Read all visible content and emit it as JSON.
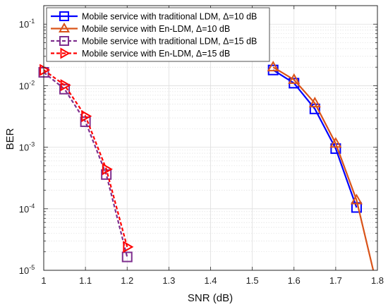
{
  "chart_data": {
    "type": "line",
    "title": "",
    "xlabel": "SNR (dB)",
    "ylabel": "BER",
    "xlim": [
      1,
      1.8
    ],
    "ylim": [
      1e-05,
      0.2
    ],
    "yscale": "log",
    "grid": true,
    "legend_position": "top",
    "x_ticks": [
      "1",
      "1.1",
      "1.2",
      "1.3",
      "1.4",
      "1.5",
      "1.6",
      "1.7",
      "1.8"
    ],
    "y_ticks": [
      {
        "value": 1e-05,
        "base": "10",
        "exp": "-5"
      },
      {
        "value": 0.0001,
        "base": "10",
        "exp": "-4"
      },
      {
        "value": 0.001,
        "base": "10",
        "exp": "-3"
      },
      {
        "value": 0.01,
        "base": "10",
        "exp": "-2"
      },
      {
        "value": 0.1,
        "base": "10",
        "exp": "-1"
      }
    ],
    "series": [
      {
        "name": "Mobile service with traditional LDM, Δ=10 dB",
        "color": "#0000ff",
        "marker": "square",
        "dashed": false,
        "points": [
          [
            1.55,
            0.018
          ],
          [
            1.6,
            0.011
          ],
          [
            1.65,
            0.0042
          ],
          [
            1.7,
            0.00095
          ],
          [
            1.75,
            0.000105
          ]
        ],
        "tail": []
      },
      {
        "name": "Mobile service with En-LDM, Δ=10 dB",
        "color": "#d95319",
        "marker": "triangle-up",
        "dashed": false,
        "points": [
          [
            1.55,
            0.02
          ],
          [
            1.6,
            0.0125
          ],
          [
            1.65,
            0.0052
          ],
          [
            1.7,
            0.00115
          ],
          [
            1.75,
            0.000138
          ]
        ],
        "tail": [
          [
            1.79,
            1e-05
          ]
        ]
      },
      {
        "name": "Mobile service with traditional LDM, Δ=15 dB",
        "color": "#7e2f8e",
        "marker": "square",
        "dashed": true,
        "points": [
          [
            1.0,
            0.0165
          ],
          [
            1.05,
            0.0088
          ],
          [
            1.1,
            0.0026
          ],
          [
            1.15,
            0.00036
          ],
          [
            1.2,
            1.65e-05
          ]
        ],
        "tail": []
      },
      {
        "name": "Mobile service with En-LDM, Δ=15 dB",
        "color": "#ff0000",
        "marker": "triangle-right",
        "dashed": true,
        "points": [
          [
            1.0,
            0.018
          ],
          [
            1.05,
            0.0102
          ],
          [
            1.1,
            0.0032
          ],
          [
            1.15,
            0.00044
          ],
          [
            1.2,
            2.4e-05
          ]
        ],
        "tail": []
      }
    ]
  }
}
